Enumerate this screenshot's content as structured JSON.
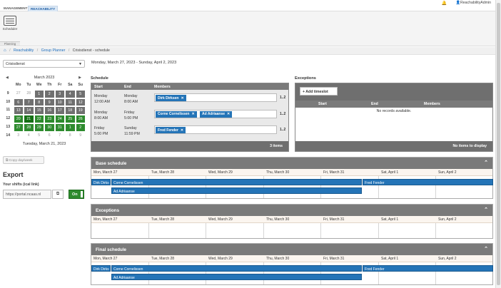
{
  "top_tabs": [
    {
      "label": "MANAGEMENT"
    },
    {
      "label": "REACHABILITY"
    }
  ],
  "user": {
    "name": "ReachabilityAdmin"
  },
  "ribbon": {
    "button_label": "Scheduler",
    "group_label": "Planning"
  },
  "breadcrumb": {
    "items": [
      "Reachability",
      "Group Planner"
    ],
    "current": "Crisisdienst - schedule"
  },
  "group_select": {
    "value": "Crisisdienst"
  },
  "date_range": "Monday, March 27, 2023 - Sunday, April 2, 2023",
  "calendar": {
    "month": "March 2023",
    "weekday_headers": [
      "Mo",
      "Tu",
      "We",
      "Th",
      "Fr",
      "Sa",
      "Su"
    ],
    "weeks": [
      {
        "wk": "9",
        "days": [
          "27",
          "28",
          "1",
          "2",
          "3",
          "4",
          "5"
        ]
      },
      {
        "wk": "10",
        "days": [
          "6",
          "7",
          "8",
          "9",
          "10",
          "11",
          "12"
        ]
      },
      {
        "wk": "11",
        "days": [
          "13",
          "14",
          "15",
          "16",
          "17",
          "18",
          "19"
        ]
      },
      {
        "wk": "12",
        "days": [
          "20",
          "21",
          "22",
          "23",
          "24",
          "25",
          "26"
        ]
      },
      {
        "wk": "13",
        "days": [
          "27",
          "28",
          "29",
          "30",
          "31",
          "1",
          "2"
        ]
      },
      {
        "wk": "14",
        "days": [
          "3",
          "4",
          "5",
          "6",
          "7",
          "8",
          "9"
        ]
      }
    ],
    "selected_date": "Tuesday, March 21, 2023"
  },
  "copy_button": "Copy day/week",
  "export": {
    "title": "Export",
    "subtitle": "Your shifts (ical link)",
    "url": "https://portal.ncaas.nl",
    "toggle": "On"
  },
  "schedule": {
    "label": "Schedule",
    "columns": [
      "Start",
      "End",
      "Members"
    ],
    "rows": [
      {
        "start_day": "Monday",
        "start_time": "12:00 AM",
        "end_day": "Monday",
        "end_time": "8:00 AM",
        "members": [
          "Dirk Dirksen"
        ],
        "more": "1..2"
      },
      {
        "start_day": "Monday",
        "start_time": "8:00 AM",
        "end_day": "Friday",
        "end_time": "5:00 PM",
        "members": [
          "Corne Cornelissen",
          "Ad Adriaanse"
        ],
        "more": "1..2"
      },
      {
        "start_day": "Friday",
        "start_time": "5:00 PM",
        "end_day": "Sunday",
        "end_time": "11:59 PM",
        "members": [
          "Fred Fender"
        ],
        "more": "1..2"
      }
    ],
    "footer": "3 items"
  },
  "exceptions_table": {
    "label": "Exceptions",
    "add_button": "Add timeslot",
    "columns": [
      "Start",
      "End",
      "Members"
    ],
    "empty": "No records available.",
    "footer": "No items to display"
  },
  "days": [
    "Mon, March 27",
    "Tue, March 28",
    "Wed, March 29",
    "Thu, March 30",
    "Fri, March 31",
    "Sat, April 1",
    "Sun, April 2"
  ],
  "panels": {
    "base": {
      "title": "Base schedule",
      "events": [
        "Dirk Dirks",
        "Corne Cornelissen",
        "Ad Adriaanse",
        "Fred Fender"
      ]
    },
    "exceptions": {
      "title": "Exceptions"
    },
    "final": {
      "title": "Final schedule",
      "events": [
        "Dirk Dirks",
        "Corne Cornelissen",
        "Ad Adriaanse",
        "Fred Fender"
      ]
    }
  },
  "colors": {
    "accent": "#2474b7",
    "green": "#2e8b2e",
    "header_gray": "#7a7a7a"
  }
}
